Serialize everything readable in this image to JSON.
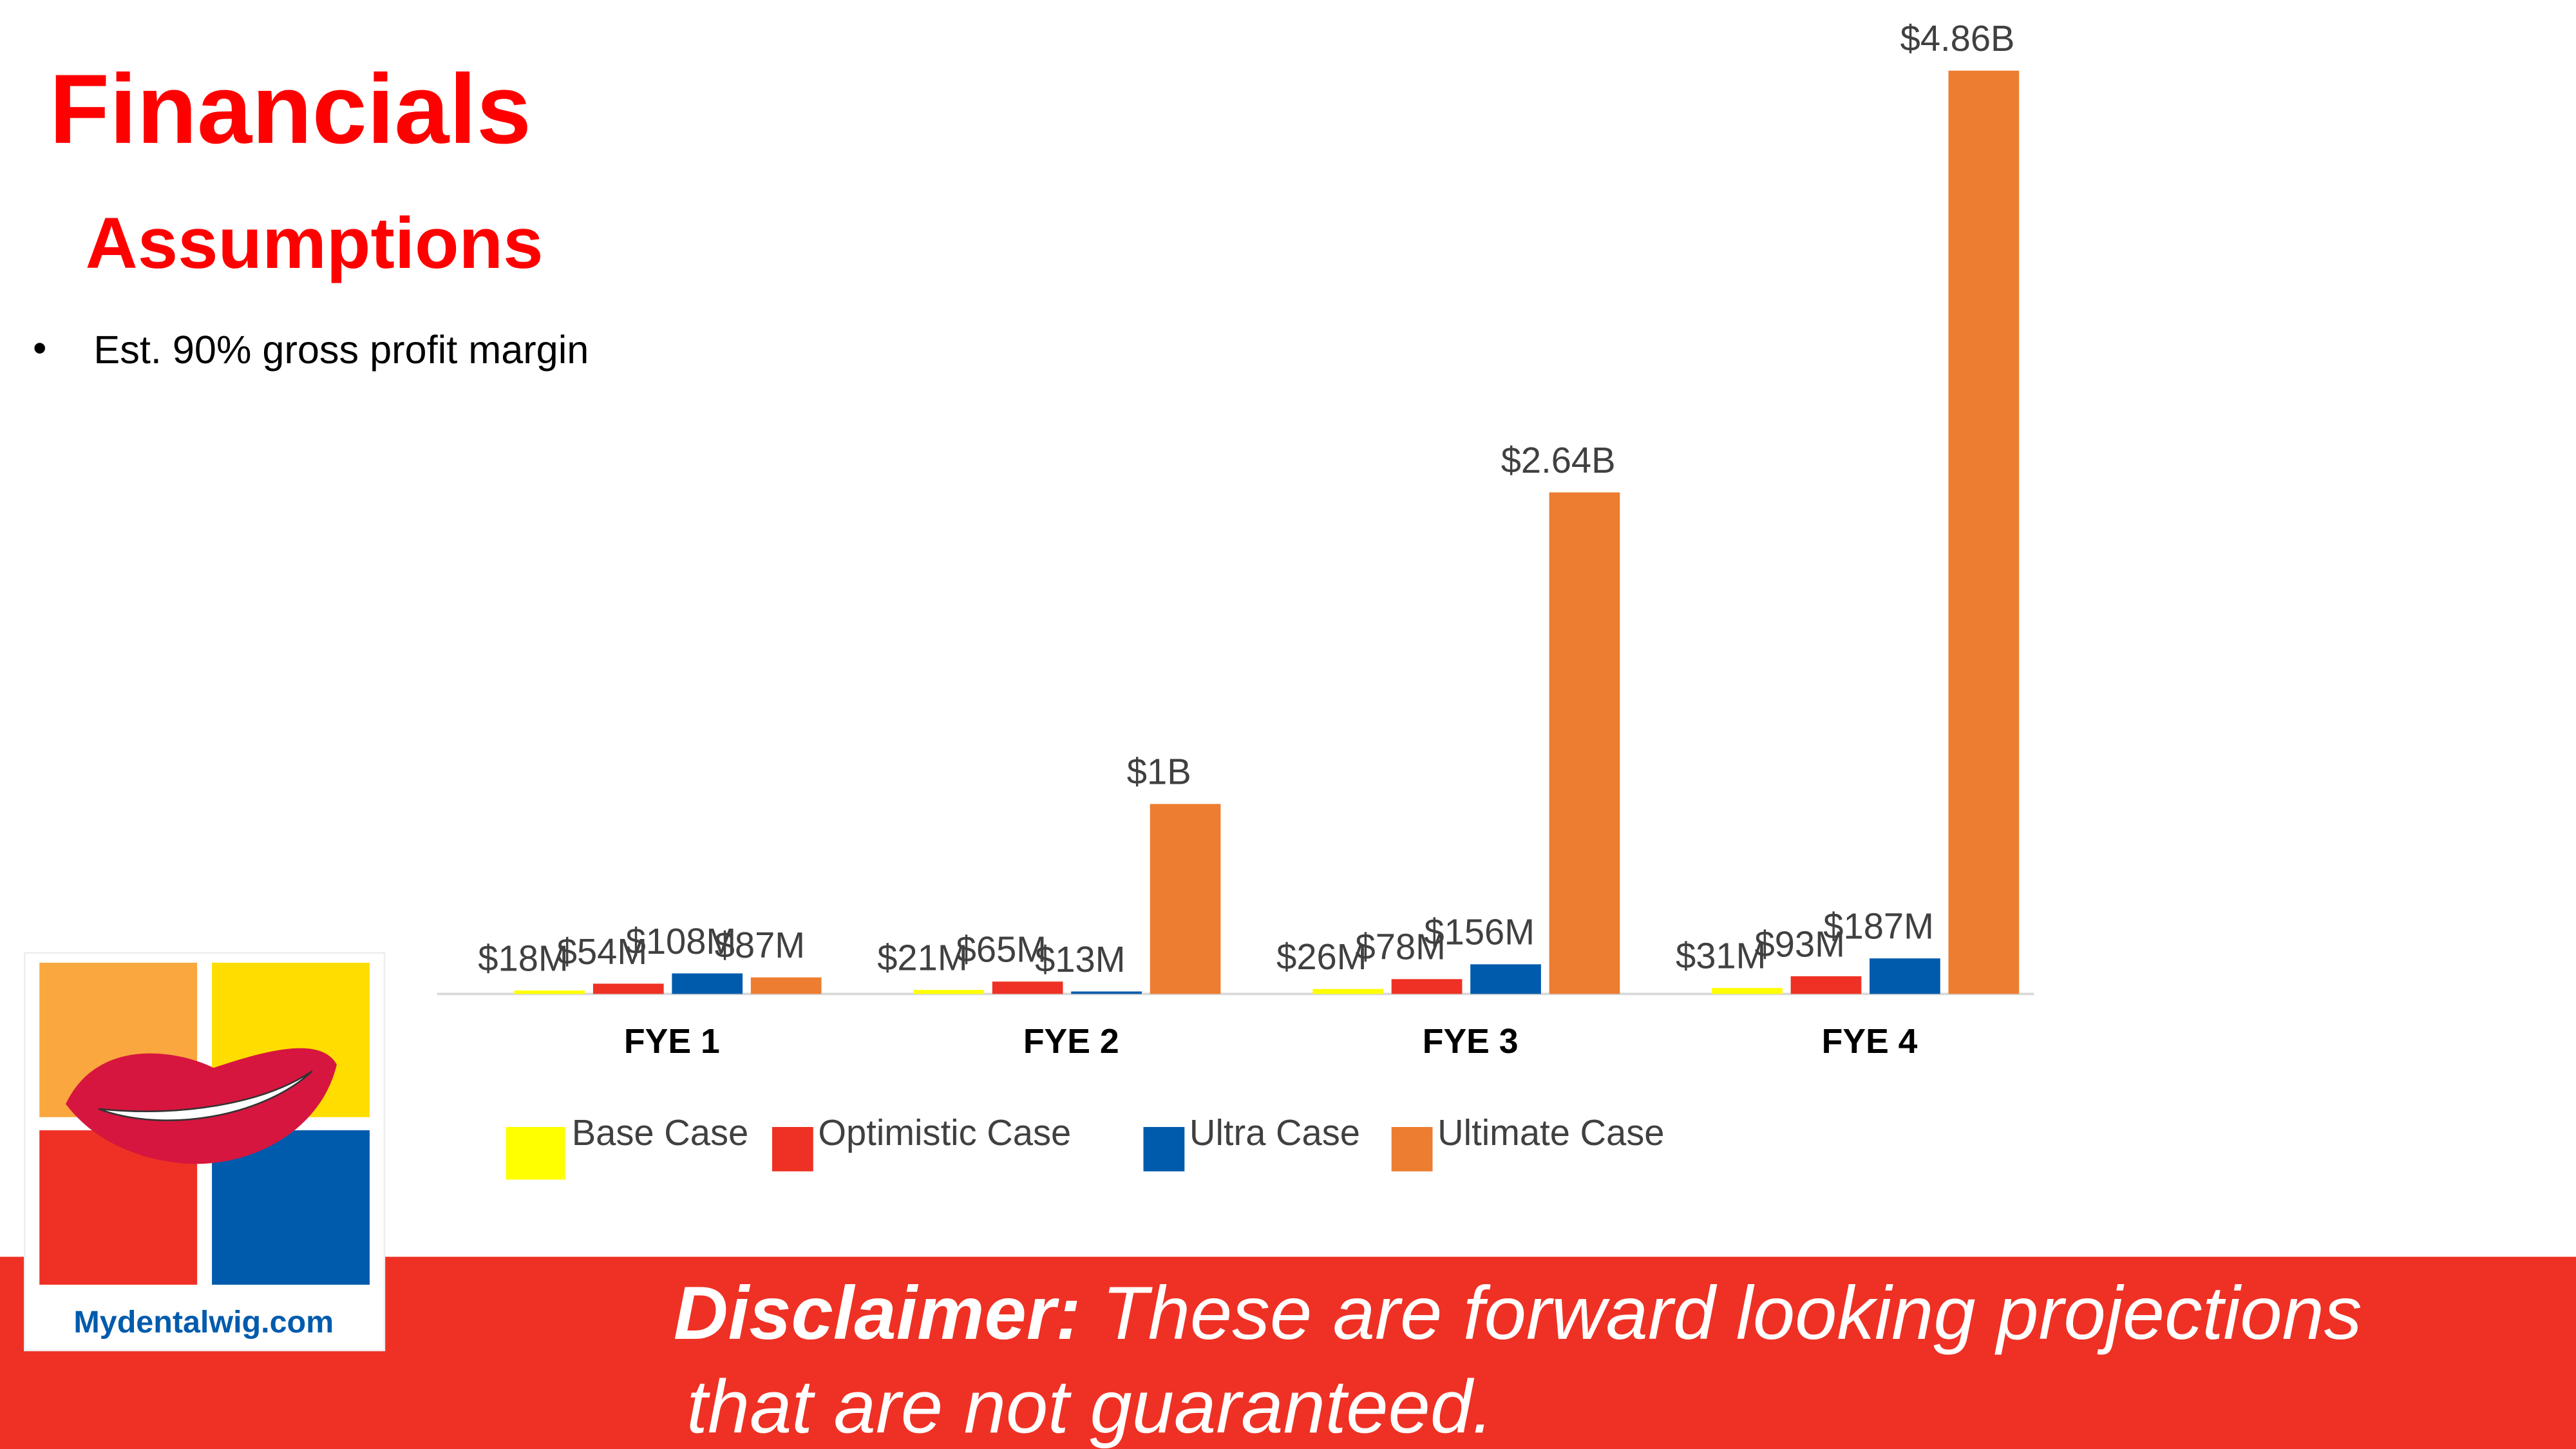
{
  "header": {
    "title": "Financials",
    "subtitle": "Assumptions",
    "bullets": [
      "Est. 90% gross profit margin"
    ]
  },
  "chart_data": {
    "type": "bar",
    "categories": [
      "FYE 1",
      "FYE 2",
      "FYE 3",
      "FYE 4"
    ],
    "series": [
      {
        "name": "Base Case",
        "color": "#ffff00",
        "values": [
          18000000,
          21000000,
          26000000,
          31000000
        ],
        "value_labels": [
          "$18M",
          "$21M",
          "$26M",
          "$31M"
        ]
      },
      {
        "name": "Optimistic Case",
        "color": "#ee3124",
        "values": [
          54000000,
          65000000,
          78000000,
          93000000
        ],
        "value_labels": [
          "$54M",
          "$65M",
          "$78M",
          "$93M"
        ]
      },
      {
        "name": "Ultra Case",
        "color": "#005bac",
        "values": [
          108000000,
          13000000,
          156000000,
          187000000
        ],
        "value_labels": [
          "$108M",
          "$13M",
          "$156M",
          "$187M"
        ]
      },
      {
        "name": "Ultimate Case",
        "color": "#ed7d31",
        "values": [
          87000000,
          1000000000,
          2640000000,
          4860000000
        ],
        "value_labels": [
          "$87M",
          "$1B",
          "$2.64B",
          "$4.86B"
        ]
      }
    ]
  },
  "disclaimer": {
    "lead": "Disclaimer:",
    "line1": "These are forward looking projections",
    "line2": "that are not guaranteed."
  },
  "logo": {
    "text": "Mydentalwig.com"
  }
}
